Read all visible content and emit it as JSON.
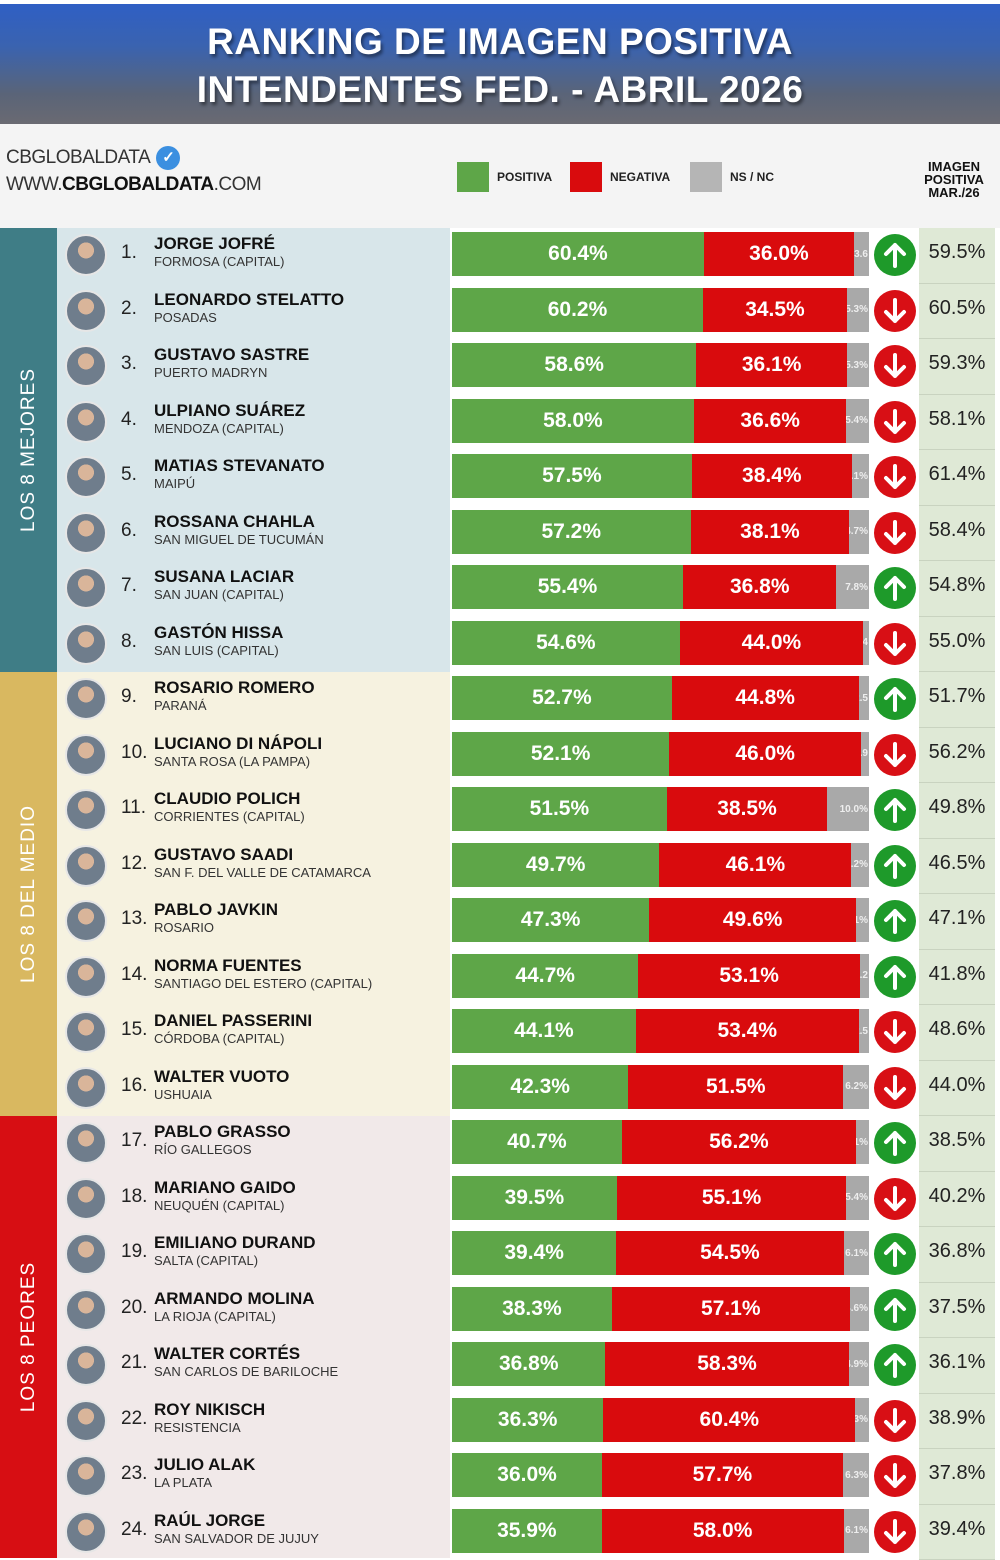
{
  "header": {
    "title_line1": "RANKING DE IMAGEN POSITIVA",
    "title_line2": "INTENDENTES FED. - ABRIL 2026",
    "brand": "CBGLOBALDATA",
    "website_prefix": "WWW.",
    "website_bold": "CBGLOBALDATA",
    "website_suffix": ".COM",
    "verified_icon": "✓",
    "column_head_line1": "IMAGEN",
    "column_head_line2": "POSITIVA",
    "column_head_line3": "MAR./26"
  },
  "legend": [
    {
      "label": "POSITIVA",
      "color": "#5ea648"
    },
    {
      "label": "NEGATIVA",
      "color": "#d90b0d"
    },
    {
      "label": "NS / NC",
      "color": "#b5b5b5"
    }
  ],
  "groups": [
    {
      "label": "LOS 8 MEJORES",
      "color": "#3f7d86",
      "zone_color": "#d8e6ea"
    },
    {
      "label": "LOS 8 DEL MEDIO",
      "color": "#d9b860",
      "zone_color": "#f6f2e0"
    },
    {
      "label": "LOS 8 PEORES",
      "color": "#d70e13",
      "zone_color": "#f1e9e9"
    }
  ],
  "chart_data": {
    "type": "bar",
    "stacked": true,
    "orientation": "horizontal",
    "title": "RANKING DE IMAGEN POSITIVA - INTENDENTES FED. - ABRIL 2026",
    "legend": [
      "POSITIVA",
      "NEGATIVA",
      "NS / NC"
    ],
    "categories": [
      "JORGE JOFRÉ",
      "LEONARDO STELATTO",
      "GUSTAVO SASTRE",
      "ULPIANO SUÁREZ",
      "MATIAS STEVANATO",
      "ROSSANA CHAHLA",
      "SUSANA LACIAR",
      "GASTÓN HISSA",
      "ROSARIO ROMERO",
      "LUCIANO DI NÁPOLI",
      "CLAUDIO POLICH",
      "GUSTAVO SAADI",
      "PABLO JAVKIN",
      "NORMA FUENTES",
      "DANIEL PASSERINI",
      "WALTER VUOTO",
      "PABLO GRASSO",
      "MARIANO GAIDO",
      "EMILIANO DURAND",
      "ARMANDO MOLINA",
      "WALTER CORTÉS",
      "ROY NIKISCH",
      "JULIO ALAK",
      "RAÚL JORGE"
    ],
    "series": [
      {
        "name": "POSITIVA",
        "values": [
          60.4,
          60.2,
          58.6,
          58.0,
          57.5,
          57.2,
          55.4,
          54.6,
          52.7,
          52.1,
          51.5,
          49.7,
          47.3,
          44.7,
          44.1,
          42.3,
          40.7,
          39.5,
          39.4,
          38.3,
          36.8,
          36.3,
          36.0,
          35.9
        ]
      },
      {
        "name": "NEGATIVA",
        "values": [
          36.0,
          34.5,
          36.1,
          36.6,
          38.4,
          38.1,
          36.8,
          44.0,
          44.8,
          46.0,
          38.5,
          46.1,
          49.6,
          53.1,
          53.4,
          51.5,
          56.2,
          55.1,
          54.5,
          57.1,
          58.3,
          60.4,
          57.7,
          58.0
        ]
      },
      {
        "name": "NS / NC",
        "values": [
          3.6,
          5.3,
          5.3,
          5.4,
          4.1,
          4.7,
          7.8,
          1.4,
          2.5,
          1.9,
          10.0,
          4.2,
          3.1,
          2.2,
          2.5,
          6.2,
          3.1,
          5.4,
          6.1,
          4.6,
          4.9,
          3.3,
          6.3,
          6.1
        ]
      },
      {
        "name": "IMAGEN POSITIVA MAR./26",
        "values": [
          59.5,
          60.5,
          59.3,
          58.1,
          61.4,
          58.4,
          54.8,
          55.0,
          51.7,
          56.2,
          49.8,
          46.5,
          47.1,
          41.8,
          48.6,
          44.0,
          38.5,
          40.2,
          36.8,
          37.5,
          36.1,
          38.9,
          37.8,
          39.4
        ]
      }
    ],
    "xlim": [
      0,
      100
    ]
  },
  "rows": [
    {
      "rank": "1.",
      "name": "JORGE JOFRÉ",
      "city": "FORMOSA (CAPITAL)",
      "pos": "60.4%",
      "neg": "36.0%",
      "ns": "3.6",
      "pv": 60.4,
      "nv": 36.0,
      "nsv": 3.6,
      "trend": "up",
      "prev": "59.5%"
    },
    {
      "rank": "2.",
      "name": "LEONARDO STELATTO",
      "city": "POSADAS",
      "pos": "60.2%",
      "neg": "34.5%",
      "ns": "5.3%",
      "pv": 60.2,
      "nv": 34.5,
      "nsv": 5.3,
      "trend": "down",
      "prev": "60.5%"
    },
    {
      "rank": "3.",
      "name": "GUSTAVO SASTRE",
      "city": "PUERTO MADRYN",
      "pos": "58.6%",
      "neg": "36.1%",
      "ns": "5.3%",
      "pv": 58.6,
      "nv": 36.1,
      "nsv": 5.3,
      "trend": "down",
      "prev": "59.3%"
    },
    {
      "rank": "4.",
      "name": "ULPIANO SUÁREZ",
      "city": "MENDOZA (CAPITAL)",
      "pos": "58.0%",
      "neg": "36.6%",
      "ns": "5.4%",
      "pv": 58.0,
      "nv": 36.6,
      "nsv": 5.4,
      "trend": "down",
      "prev": "58.1%"
    },
    {
      "rank": "5.",
      "name": "MATIAS STEVANATO",
      "city": "MAIPÚ",
      "pos": "57.5%",
      "neg": "38.4%",
      "ns": "4.1%",
      "pv": 57.5,
      "nv": 38.4,
      "nsv": 4.1,
      "trend": "down",
      "prev": "61.4%"
    },
    {
      "rank": "6.",
      "name": "ROSSANA CHAHLA",
      "city": "SAN MIGUEL DE TUCUMÁN",
      "pos": "57.2%",
      "neg": "38.1%",
      "ns": "4.7%",
      "pv": 57.2,
      "nv": 38.1,
      "nsv": 4.7,
      "trend": "down",
      "prev": "58.4%"
    },
    {
      "rank": "7.",
      "name": "SUSANA LACIAR",
      "city": "SAN JUAN (CAPITAL)",
      "pos": "55.4%",
      "neg": "36.8%",
      "ns": "7.8%",
      "pv": 55.4,
      "nv": 36.8,
      "nsv": 7.8,
      "trend": "up",
      "prev": "54.8%"
    },
    {
      "rank": "8.",
      "name": "GASTÓN HISSA",
      "city": "SAN LUIS (CAPITAL)",
      "pos": "54.6%",
      "neg": "44.0%",
      "ns": "1.4",
      "pv": 54.6,
      "nv": 44.0,
      "nsv": 1.4,
      "trend": "down",
      "prev": "55.0%"
    },
    {
      "rank": "9.",
      "name": "ROSARIO ROMERO",
      "city": "PARANÁ",
      "pos": "52.7%",
      "neg": "44.8%",
      "ns": "2.5",
      "pv": 52.7,
      "nv": 44.8,
      "nsv": 2.5,
      "trend": "up",
      "prev": "51.7%"
    },
    {
      "rank": "10.",
      "name": "LUCIANO DI NÁPOLI",
      "city": "SANTA ROSA (LA PAMPA)",
      "pos": "52.1%",
      "neg": "46.0%",
      "ns": "1.9",
      "pv": 52.1,
      "nv": 46.0,
      "nsv": 1.9,
      "trend": "down",
      "prev": "56.2%"
    },
    {
      "rank": "11.",
      "name": "CLAUDIO POLICH",
      "city": "CORRIENTES (CAPITAL)",
      "pos": "51.5%",
      "neg": "38.5%",
      "ns": "10.0%",
      "pv": 51.5,
      "nv": 38.5,
      "nsv": 10.0,
      "trend": "up",
      "prev": "49.8%"
    },
    {
      "rank": "12.",
      "name": "GUSTAVO SAADI",
      "city": "SAN F. DEL VALLE DE CATAMARCA",
      "pos": "49.7%",
      "neg": "46.1%",
      "ns": "4.2%",
      "pv": 49.7,
      "nv": 46.1,
      "nsv": 4.2,
      "trend": "up",
      "prev": "46.5%"
    },
    {
      "rank": "13.",
      "name": "PABLO JAVKIN",
      "city": "ROSARIO",
      "pos": "47.3%",
      "neg": "49.6%",
      "ns": "3.1%",
      "pv": 47.3,
      "nv": 49.6,
      "nsv": 3.1,
      "trend": "up",
      "prev": "47.1%"
    },
    {
      "rank": "14.",
      "name": "NORMA FUENTES",
      "city": "SANTIAGO DEL ESTERO (CAPITAL)",
      "pos": "44.7%",
      "neg": "53.1%",
      "ns": "2.2",
      "pv": 44.7,
      "nv": 53.1,
      "nsv": 2.2,
      "trend": "up",
      "prev": "41.8%"
    },
    {
      "rank": "15.",
      "name": "DANIEL PASSERINI",
      "city": "CÓRDOBA (CAPITAL)",
      "pos": "44.1%",
      "neg": "53.4%",
      "ns": "2.5",
      "pv": 44.1,
      "nv": 53.4,
      "nsv": 2.5,
      "trend": "down",
      "prev": "48.6%"
    },
    {
      "rank": "16.",
      "name": "WALTER VUOTO",
      "city": "USHUAIA",
      "pos": "42.3%",
      "neg": "51.5%",
      "ns": "6.2%",
      "pv": 42.3,
      "nv": 51.5,
      "nsv": 6.2,
      "trend": "down",
      "prev": "44.0%"
    },
    {
      "rank": "17.",
      "name": "PABLO GRASSO",
      "city": "RÍO GALLEGOS",
      "pos": "40.7%",
      "neg": "56.2%",
      "ns": "3.1%",
      "pv": 40.7,
      "nv": 56.2,
      "nsv": 3.1,
      "trend": "up",
      "prev": "38.5%"
    },
    {
      "rank": "18.",
      "name": "MARIANO GAIDO",
      "city": "NEUQUÉN (CAPITAL)",
      "pos": "39.5%",
      "neg": "55.1%",
      "ns": "5.4%",
      "pv": 39.5,
      "nv": 55.1,
      "nsv": 5.4,
      "trend": "down",
      "prev": "40.2%"
    },
    {
      "rank": "19.",
      "name": "EMILIANO DURAND",
      "city": "SALTA (CAPITAL)",
      "pos": "39.4%",
      "neg": "54.5%",
      "ns": "6.1%",
      "pv": 39.4,
      "nv": 54.5,
      "nsv": 6.1,
      "trend": "up",
      "prev": "36.8%"
    },
    {
      "rank": "20.",
      "name": "ARMANDO MOLINA",
      "city": "LA RIOJA (CAPITAL)",
      "pos": "38.3%",
      "neg": "57.1%",
      "ns": "4.6%",
      "pv": 38.3,
      "nv": 57.1,
      "nsv": 4.6,
      "trend": "up",
      "prev": "37.5%"
    },
    {
      "rank": "21.",
      "name": "WALTER CORTÉS",
      "city": "SAN CARLOS DE BARILOCHE",
      "pos": "36.8%",
      "neg": "58.3%",
      "ns": "4.9%",
      "pv": 36.8,
      "nv": 58.3,
      "nsv": 4.9,
      "trend": "up",
      "prev": "36.1%"
    },
    {
      "rank": "22.",
      "name": "ROY NIKISCH",
      "city": "RESISTENCIA",
      "pos": "36.3%",
      "neg": "60.4%",
      "ns": "3.3%",
      "pv": 36.3,
      "nv": 60.4,
      "nsv": 3.3,
      "trend": "down",
      "prev": "38.9%"
    },
    {
      "rank": "23.",
      "name": "JULIO ALAK",
      "city": "LA PLATA",
      "pos": "36.0%",
      "neg": "57.7%",
      "ns": "6.3%",
      "pv": 36.0,
      "nv": 57.7,
      "nsv": 6.3,
      "trend": "down",
      "prev": "37.8%"
    },
    {
      "rank": "24.",
      "name": "RAÚL JORGE",
      "city": "SAN SALVADOR DE JUJUY",
      "pos": "35.9%",
      "neg": "58.0%",
      "ns": "6.1%",
      "pv": 35.9,
      "nv": 58.0,
      "nsv": 6.1,
      "trend": "down",
      "prev": "39.4%"
    }
  ]
}
